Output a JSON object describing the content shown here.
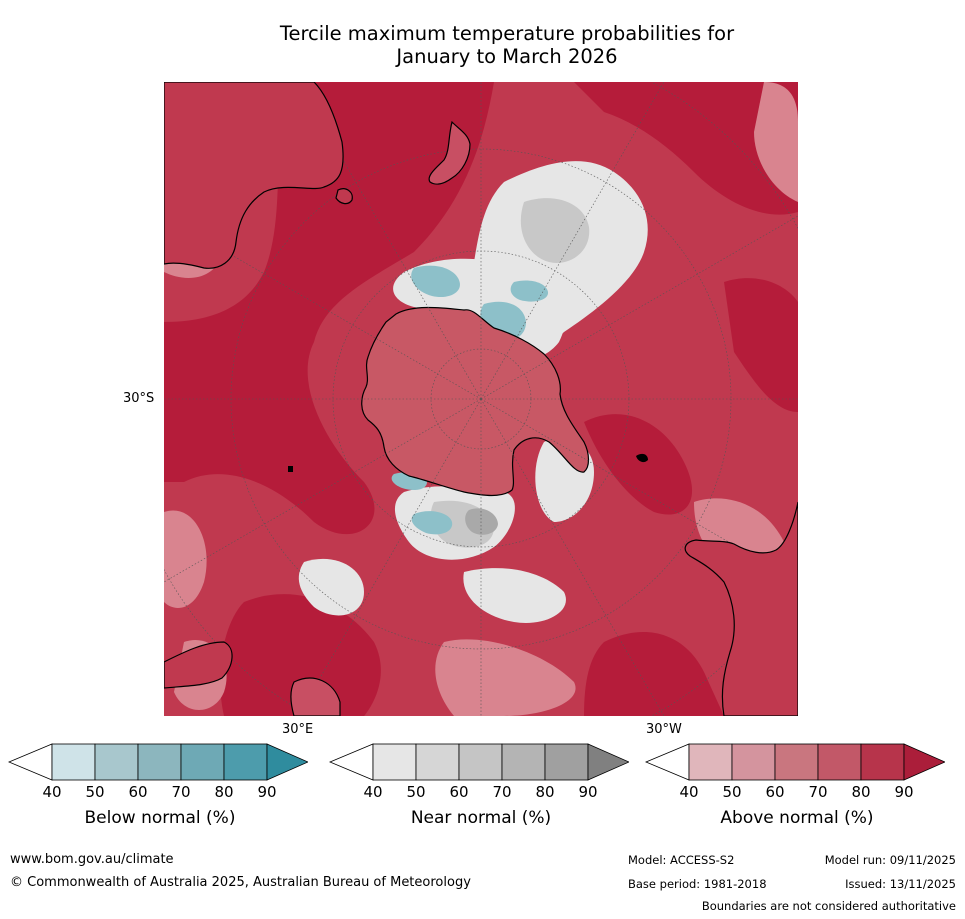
{
  "title": {
    "line1": "Tercile maximum temperature probabilities for",
    "line2": "January to March 2026"
  },
  "map": {
    "lat_label": "30°S",
    "lon_labels": [
      "30°E",
      "30°W"
    ],
    "colors": {
      "above_dark": "#b51c3a",
      "above_mid": "#c84f63",
      "above_light": "#d9848f",
      "near_light": "#e6e6e6",
      "near_mid": "#c8c8c8",
      "below": "#8dc0c9",
      "coast": "#000000"
    }
  },
  "colorbars": [
    {
      "label": "Below normal (%)",
      "ticks": [
        "40",
        "50",
        "60",
        "70",
        "80",
        "90"
      ],
      "colors": [
        "#ffffff",
        "#cfe3e8",
        "#a8c7cd",
        "#8cb6be",
        "#6ea9b5",
        "#4d9cac",
        "#2f8c9e"
      ]
    },
    {
      "label": "Near normal (%)",
      "ticks": [
        "40",
        "50",
        "60",
        "70",
        "80",
        "90"
      ],
      "colors": [
        "#ffffff",
        "#e6e6e6",
        "#d6d6d6",
        "#c5c5c5",
        "#b4b4b4",
        "#a0a0a0",
        "#808080"
      ]
    },
    {
      "label": "Above normal (%)",
      "ticks": [
        "40",
        "50",
        "60",
        "70",
        "80",
        "90"
      ],
      "colors": [
        "#ffffff",
        "#e0b6bb",
        "#d4949e",
        "#c9767f",
        "#c25868",
        "#b7344b",
        "#ab1e3a"
      ]
    }
  ],
  "footer": {
    "website": "www.bom.gov.au/climate",
    "copyright": "© Commonwealth of Australia 2025, Australian Bureau of Meteorology",
    "model": "Model: ACCESS-S2",
    "model_run": "Model run: 09/11/2025",
    "base_period": "Base period: 1981-2018",
    "issued": "Issued: 13/11/2025",
    "boundaries": "Boundaries are not considered authoritative"
  }
}
